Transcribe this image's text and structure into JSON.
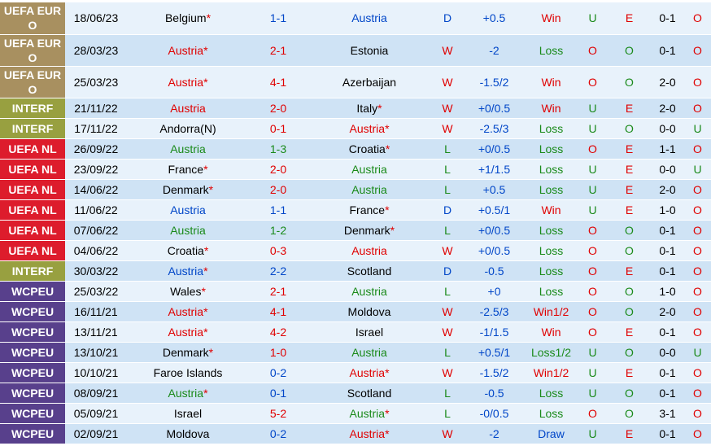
{
  "colors": {
    "EURO": "#a89060",
    "INTERF": "#98a040",
    "NL": "#dd1c2c",
    "WCPEU": "#58408c",
    "red": "#e00000",
    "blue": "#0046c8",
    "green": "#1a8a1a",
    "black": "#000000"
  },
  "matches": [
    {
      "league": "UEFA EUR O",
      "lt": "EURO",
      "date": "18/06/23",
      "home": "Belgium",
      "hs": true,
      "hc": "black",
      "score": "1-1",
      "sc": "blue",
      "away": "Austria",
      "as": false,
      "ac": "blue",
      "res": "D",
      "rc": "blue",
      "hcp": "+0.5",
      "hcpc": "blue",
      "hr": "Win",
      "hrc": "red",
      "ou": "U",
      "ouc": "green",
      "oe": "E",
      "oec": "red",
      "ht": "0-1",
      "htr": "O",
      "htrc": "red"
    },
    {
      "league": "UEFA EUR O",
      "lt": "EURO",
      "date": "28/03/23",
      "home": "Austria",
      "hs": true,
      "hc": "red",
      "score": "2-1",
      "sc": "red",
      "away": "Estonia",
      "as": false,
      "ac": "black",
      "res": "W",
      "rc": "red",
      "hcp": "-2",
      "hcpc": "blue",
      "hr": "Loss",
      "hrc": "green",
      "ou": "O",
      "ouc": "red",
      "oe": "O",
      "oec": "green",
      "ht": "0-1",
      "htr": "O",
      "htrc": "red"
    },
    {
      "league": "UEFA EUR O",
      "lt": "EURO",
      "date": "25/03/23",
      "home": "Austria",
      "hs": true,
      "hc": "red",
      "score": "4-1",
      "sc": "red",
      "away": "Azerbaijan",
      "as": false,
      "ac": "black",
      "res": "W",
      "rc": "red",
      "hcp": "-1.5/2",
      "hcpc": "blue",
      "hr": "Win",
      "hrc": "red",
      "ou": "O",
      "ouc": "red",
      "oe": "O",
      "oec": "green",
      "ht": "2-0",
      "htr": "O",
      "htrc": "red"
    },
    {
      "league": "INTERF",
      "lt": "INTERF",
      "date": "21/11/22",
      "home": "Austria",
      "hs": false,
      "hc": "red",
      "score": "2-0",
      "sc": "red",
      "away": "Italy",
      "as": true,
      "ac": "black",
      "res": "W",
      "rc": "red",
      "hcp": "+0/0.5",
      "hcpc": "blue",
      "hr": "Win",
      "hrc": "red",
      "ou": "U",
      "ouc": "green",
      "oe": "E",
      "oec": "red",
      "ht": "2-0",
      "htr": "O",
      "htrc": "red"
    },
    {
      "league": "INTERF",
      "lt": "INTERF",
      "date": "17/11/22",
      "home": "Andorra(N)",
      "hs": false,
      "hc": "black",
      "score": "0-1",
      "sc": "red",
      "away": "Austria",
      "as": true,
      "ac": "red",
      "res": "W",
      "rc": "red",
      "hcp": "-2.5/3",
      "hcpc": "blue",
      "hr": "Loss",
      "hrc": "green",
      "ou": "U",
      "ouc": "green",
      "oe": "O",
      "oec": "green",
      "ht": "0-0",
      "htr": "U",
      "htrc": "green"
    },
    {
      "league": "UEFA NL",
      "lt": "NL",
      "date": "26/09/22",
      "home": "Austria",
      "hs": false,
      "hc": "green",
      "score": "1-3",
      "sc": "green",
      "away": "Croatia",
      "as": true,
      "ac": "black",
      "res": "L",
      "rc": "green",
      "hcp": "+0/0.5",
      "hcpc": "blue",
      "hr": "Loss",
      "hrc": "green",
      "ou": "O",
      "ouc": "red",
      "oe": "E",
      "oec": "red",
      "ht": "1-1",
      "htr": "O",
      "htrc": "red"
    },
    {
      "league": "UEFA NL",
      "lt": "NL",
      "date": "23/09/22",
      "home": "France",
      "hs": true,
      "hc": "black",
      "score": "2-0",
      "sc": "red",
      "away": "Austria",
      "as": false,
      "ac": "green",
      "res": "L",
      "rc": "green",
      "hcp": "+1/1.5",
      "hcpc": "blue",
      "hr": "Loss",
      "hrc": "green",
      "ou": "U",
      "ouc": "green",
      "oe": "E",
      "oec": "red",
      "ht": "0-0",
      "htr": "U",
      "htrc": "green"
    },
    {
      "league": "UEFA NL",
      "lt": "NL",
      "date": "14/06/22",
      "home": "Denmark",
      "hs": true,
      "hc": "black",
      "score": "2-0",
      "sc": "red",
      "away": "Austria",
      "as": false,
      "ac": "green",
      "res": "L",
      "rc": "green",
      "hcp": "+0.5",
      "hcpc": "blue",
      "hr": "Loss",
      "hrc": "green",
      "ou": "U",
      "ouc": "green",
      "oe": "E",
      "oec": "red",
      "ht": "2-0",
      "htr": "O",
      "htrc": "red"
    },
    {
      "league": "UEFA NL",
      "lt": "NL",
      "date": "11/06/22",
      "home": "Austria",
      "hs": false,
      "hc": "blue",
      "score": "1-1",
      "sc": "blue",
      "away": "France",
      "as": true,
      "ac": "black",
      "res": "D",
      "rc": "blue",
      "hcp": "+0.5/1",
      "hcpc": "blue",
      "hr": "Win",
      "hrc": "red",
      "ou": "U",
      "ouc": "green",
      "oe": "E",
      "oec": "red",
      "ht": "1-0",
      "htr": "O",
      "htrc": "red"
    },
    {
      "league": "UEFA NL",
      "lt": "NL",
      "date": "07/06/22",
      "home": "Austria",
      "hs": false,
      "hc": "green",
      "score": "1-2",
      "sc": "green",
      "away": "Denmark",
      "as": true,
      "ac": "black",
      "res": "L",
      "rc": "green",
      "hcp": "+0/0.5",
      "hcpc": "blue",
      "hr": "Loss",
      "hrc": "green",
      "ou": "O",
      "ouc": "red",
      "oe": "O",
      "oec": "green",
      "ht": "0-1",
      "htr": "O",
      "htrc": "red"
    },
    {
      "league": "UEFA NL",
      "lt": "NL",
      "date": "04/06/22",
      "home": "Croatia",
      "hs": true,
      "hc": "black",
      "score": "0-3",
      "sc": "red",
      "away": "Austria",
      "as": false,
      "ac": "red",
      "res": "W",
      "rc": "red",
      "hcp": "+0/0.5",
      "hcpc": "blue",
      "hr": "Loss",
      "hrc": "green",
      "ou": "O",
      "ouc": "red",
      "oe": "O",
      "oec": "green",
      "ht": "0-1",
      "htr": "O",
      "htrc": "red"
    },
    {
      "league": "INTERF",
      "lt": "INTERF",
      "date": "30/03/22",
      "home": "Austria",
      "hs": true,
      "hc": "blue",
      "score": "2-2",
      "sc": "blue",
      "away": "Scotland",
      "as": false,
      "ac": "black",
      "res": "D",
      "rc": "blue",
      "hcp": "-0.5",
      "hcpc": "blue",
      "hr": "Loss",
      "hrc": "green",
      "ou": "O",
      "ouc": "red",
      "oe": "E",
      "oec": "red",
      "ht": "0-1",
      "htr": "O",
      "htrc": "red"
    },
    {
      "league": "WCPEU",
      "lt": "WCPEU",
      "date": "25/03/22",
      "home": "Wales",
      "hs": true,
      "hc": "black",
      "score": "2-1",
      "sc": "red",
      "away": "Austria",
      "as": false,
      "ac": "green",
      "res": "L",
      "rc": "green",
      "hcp": "+0",
      "hcpc": "blue",
      "hr": "Loss",
      "hrc": "green",
      "ou": "O",
      "ouc": "red",
      "oe": "O",
      "oec": "green",
      "ht": "1-0",
      "htr": "O",
      "htrc": "red"
    },
    {
      "league": "WCPEU",
      "lt": "WCPEU",
      "date": "16/11/21",
      "home": "Austria",
      "hs": true,
      "hc": "red",
      "score": "4-1",
      "sc": "red",
      "away": "Moldova",
      "as": false,
      "ac": "black",
      "res": "W",
      "rc": "red",
      "hcp": "-2.5/3",
      "hcpc": "blue",
      "hr": "Win1/2",
      "hrc": "red",
      "ou": "O",
      "ouc": "red",
      "oe": "O",
      "oec": "green",
      "ht": "2-0",
      "htr": "O",
      "htrc": "red"
    },
    {
      "league": "WCPEU",
      "lt": "WCPEU",
      "date": "13/11/21",
      "home": "Austria",
      "hs": true,
      "hc": "red",
      "score": "4-2",
      "sc": "red",
      "away": "Israel",
      "as": false,
      "ac": "black",
      "res": "W",
      "rc": "red",
      "hcp": "-1/1.5",
      "hcpc": "blue",
      "hr": "Win",
      "hrc": "red",
      "ou": "O",
      "ouc": "red",
      "oe": "E",
      "oec": "red",
      "ht": "0-1",
      "htr": "O",
      "htrc": "red"
    },
    {
      "league": "WCPEU",
      "lt": "WCPEU",
      "date": "13/10/21",
      "home": "Denmark",
      "hs": true,
      "hc": "black",
      "score": "1-0",
      "sc": "red",
      "away": "Austria",
      "as": false,
      "ac": "green",
      "res": "L",
      "rc": "green",
      "hcp": "+0.5/1",
      "hcpc": "blue",
      "hr": "Loss1/2",
      "hrc": "green",
      "ou": "U",
      "ouc": "green",
      "oe": "O",
      "oec": "green",
      "ht": "0-0",
      "htr": "U",
      "htrc": "green"
    },
    {
      "league": "WCPEU",
      "lt": "WCPEU",
      "date": "10/10/21",
      "home": "Faroe Islands",
      "hs": false,
      "hc": "black",
      "score": "0-2",
      "sc": "blue",
      "away": "Austria",
      "as": true,
      "ac": "red",
      "res": "W",
      "rc": "red",
      "hcp": "-1.5/2",
      "hcpc": "blue",
      "hr": "Win1/2",
      "hrc": "red",
      "ou": "U",
      "ouc": "green",
      "oe": "E",
      "oec": "red",
      "ht": "0-1",
      "htr": "O",
      "htrc": "red"
    },
    {
      "league": "WCPEU",
      "lt": "WCPEU",
      "date": "08/09/21",
      "home": "Austria",
      "hs": true,
      "hc": "green",
      "score": "0-1",
      "sc": "blue",
      "away": "Scotland",
      "as": false,
      "ac": "black",
      "res": "L",
      "rc": "green",
      "hcp": "-0.5",
      "hcpc": "blue",
      "hr": "Loss",
      "hrc": "green",
      "ou": "U",
      "ouc": "green",
      "oe": "O",
      "oec": "green",
      "ht": "0-1",
      "htr": "O",
      "htrc": "red"
    },
    {
      "league": "WCPEU",
      "lt": "WCPEU",
      "date": "05/09/21",
      "home": "Israel",
      "hs": false,
      "hc": "black",
      "score": "5-2",
      "sc": "red",
      "away": "Austria",
      "as": true,
      "ac": "green",
      "res": "L",
      "rc": "green",
      "hcp": "-0/0.5",
      "hcpc": "blue",
      "hr": "Loss",
      "hrc": "green",
      "ou": "O",
      "ouc": "red",
      "oe": "O",
      "oec": "green",
      "ht": "3-1",
      "htr": "O",
      "htrc": "red"
    },
    {
      "league": "WCPEU",
      "lt": "WCPEU",
      "date": "02/09/21",
      "home": "Moldova",
      "hs": false,
      "hc": "black",
      "score": "0-2",
      "sc": "blue",
      "away": "Austria",
      "as": true,
      "ac": "red",
      "res": "W",
      "rc": "red",
      "hcp": "-2",
      "hcpc": "blue",
      "hr": "Draw",
      "hrc": "blue",
      "ou": "U",
      "ouc": "green",
      "oe": "E",
      "oec": "red",
      "ht": "0-1",
      "htr": "O",
      "htrc": "red"
    }
  ]
}
